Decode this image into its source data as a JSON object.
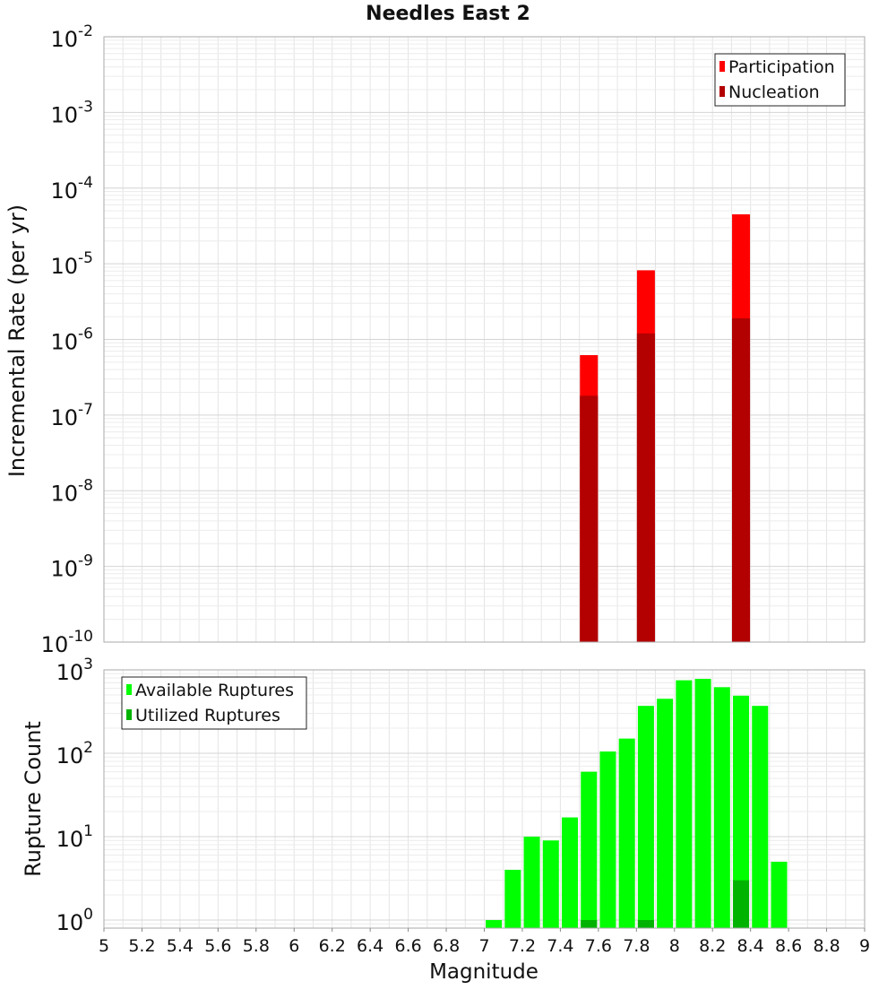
{
  "chart_data": [
    {
      "type": "bar",
      "title": "Needles East 2",
      "ylabel": "Incremental Rate (per yr)",
      "xlabel": "",
      "y_scale": "log",
      "ylim": [
        1e-10,
        0.01
      ],
      "xlim": [
        5,
        9
      ],
      "grid": true,
      "legend_position": "top-right",
      "y_tick_labels": [
        {
          "base": "10",
          "exp": "-10",
          "value": 1e-10
        },
        {
          "base": "10",
          "exp": "-9",
          "value": 1e-09
        },
        {
          "base": "10",
          "exp": "-8",
          "value": 1e-08
        },
        {
          "base": "10",
          "exp": "-7",
          "value": 1e-07
        },
        {
          "base": "10",
          "exp": "-6",
          "value": 1e-06
        },
        {
          "base": "10",
          "exp": "-5",
          "value": 1e-05
        },
        {
          "base": "10",
          "exp": "-4",
          "value": 0.0001
        },
        {
          "base": "10",
          "exp": "-3",
          "value": 0.001
        },
        {
          "base": "10",
          "exp": "-2",
          "value": 0.01
        }
      ],
      "series": [
        {
          "name": "Participation",
          "color": "#ff0000",
          "x": [
            7.55,
            7.85,
            8.35
          ],
          "values": [
            6.2e-07,
            8.2e-06,
            4.5e-05
          ]
        },
        {
          "name": "Nucleation",
          "color": "#b30000",
          "x": [
            7.55,
            7.85,
            8.35
          ],
          "values": [
            1.8e-07,
            1.2e-06,
            1.9e-06
          ]
        }
      ]
    },
    {
      "type": "bar",
      "title": "",
      "xlabel": "Magnitude",
      "ylabel": "Rupture Count",
      "y_scale": "log",
      "ylim": [
        0.8,
        1000
      ],
      "xlim": [
        5,
        9
      ],
      "grid": true,
      "legend_position": "top-left",
      "x_tick_labels": [
        "5",
        "5.2",
        "5.4",
        "5.6",
        "5.8",
        "6",
        "6.2",
        "6.4",
        "6.6",
        "6.8",
        "7",
        "7.2",
        "7.4",
        "7.6",
        "7.8",
        "8",
        "8.2",
        "8.4",
        "8.6",
        "8.8",
        "9"
      ],
      "y_tick_labels": [
        {
          "base": "10",
          "exp": "0",
          "value": 1
        },
        {
          "base": "10",
          "exp": "1",
          "value": 10
        },
        {
          "base": "10",
          "exp": "2",
          "value": 100
        },
        {
          "base": "10",
          "exp": "3",
          "value": 1000
        }
      ],
      "series": [
        {
          "name": "Available Ruptures",
          "color": "#00ff00",
          "x": [
            7.05,
            7.15,
            7.25,
            7.35,
            7.45,
            7.55,
            7.65,
            7.75,
            7.85,
            7.95,
            8.05,
            8.15,
            8.25,
            8.35,
            8.45,
            8.55
          ],
          "values": [
            1,
            4,
            10,
            9,
            17,
            60,
            105,
            150,
            370,
            450,
            750,
            780,
            620,
            490,
            370,
            5
          ]
        },
        {
          "name": "Utilized Ruptures",
          "color": "#00b300",
          "x": [
            7.55,
            7.85,
            8.35
          ],
          "values": [
            1,
            1,
            3
          ]
        }
      ]
    }
  ]
}
